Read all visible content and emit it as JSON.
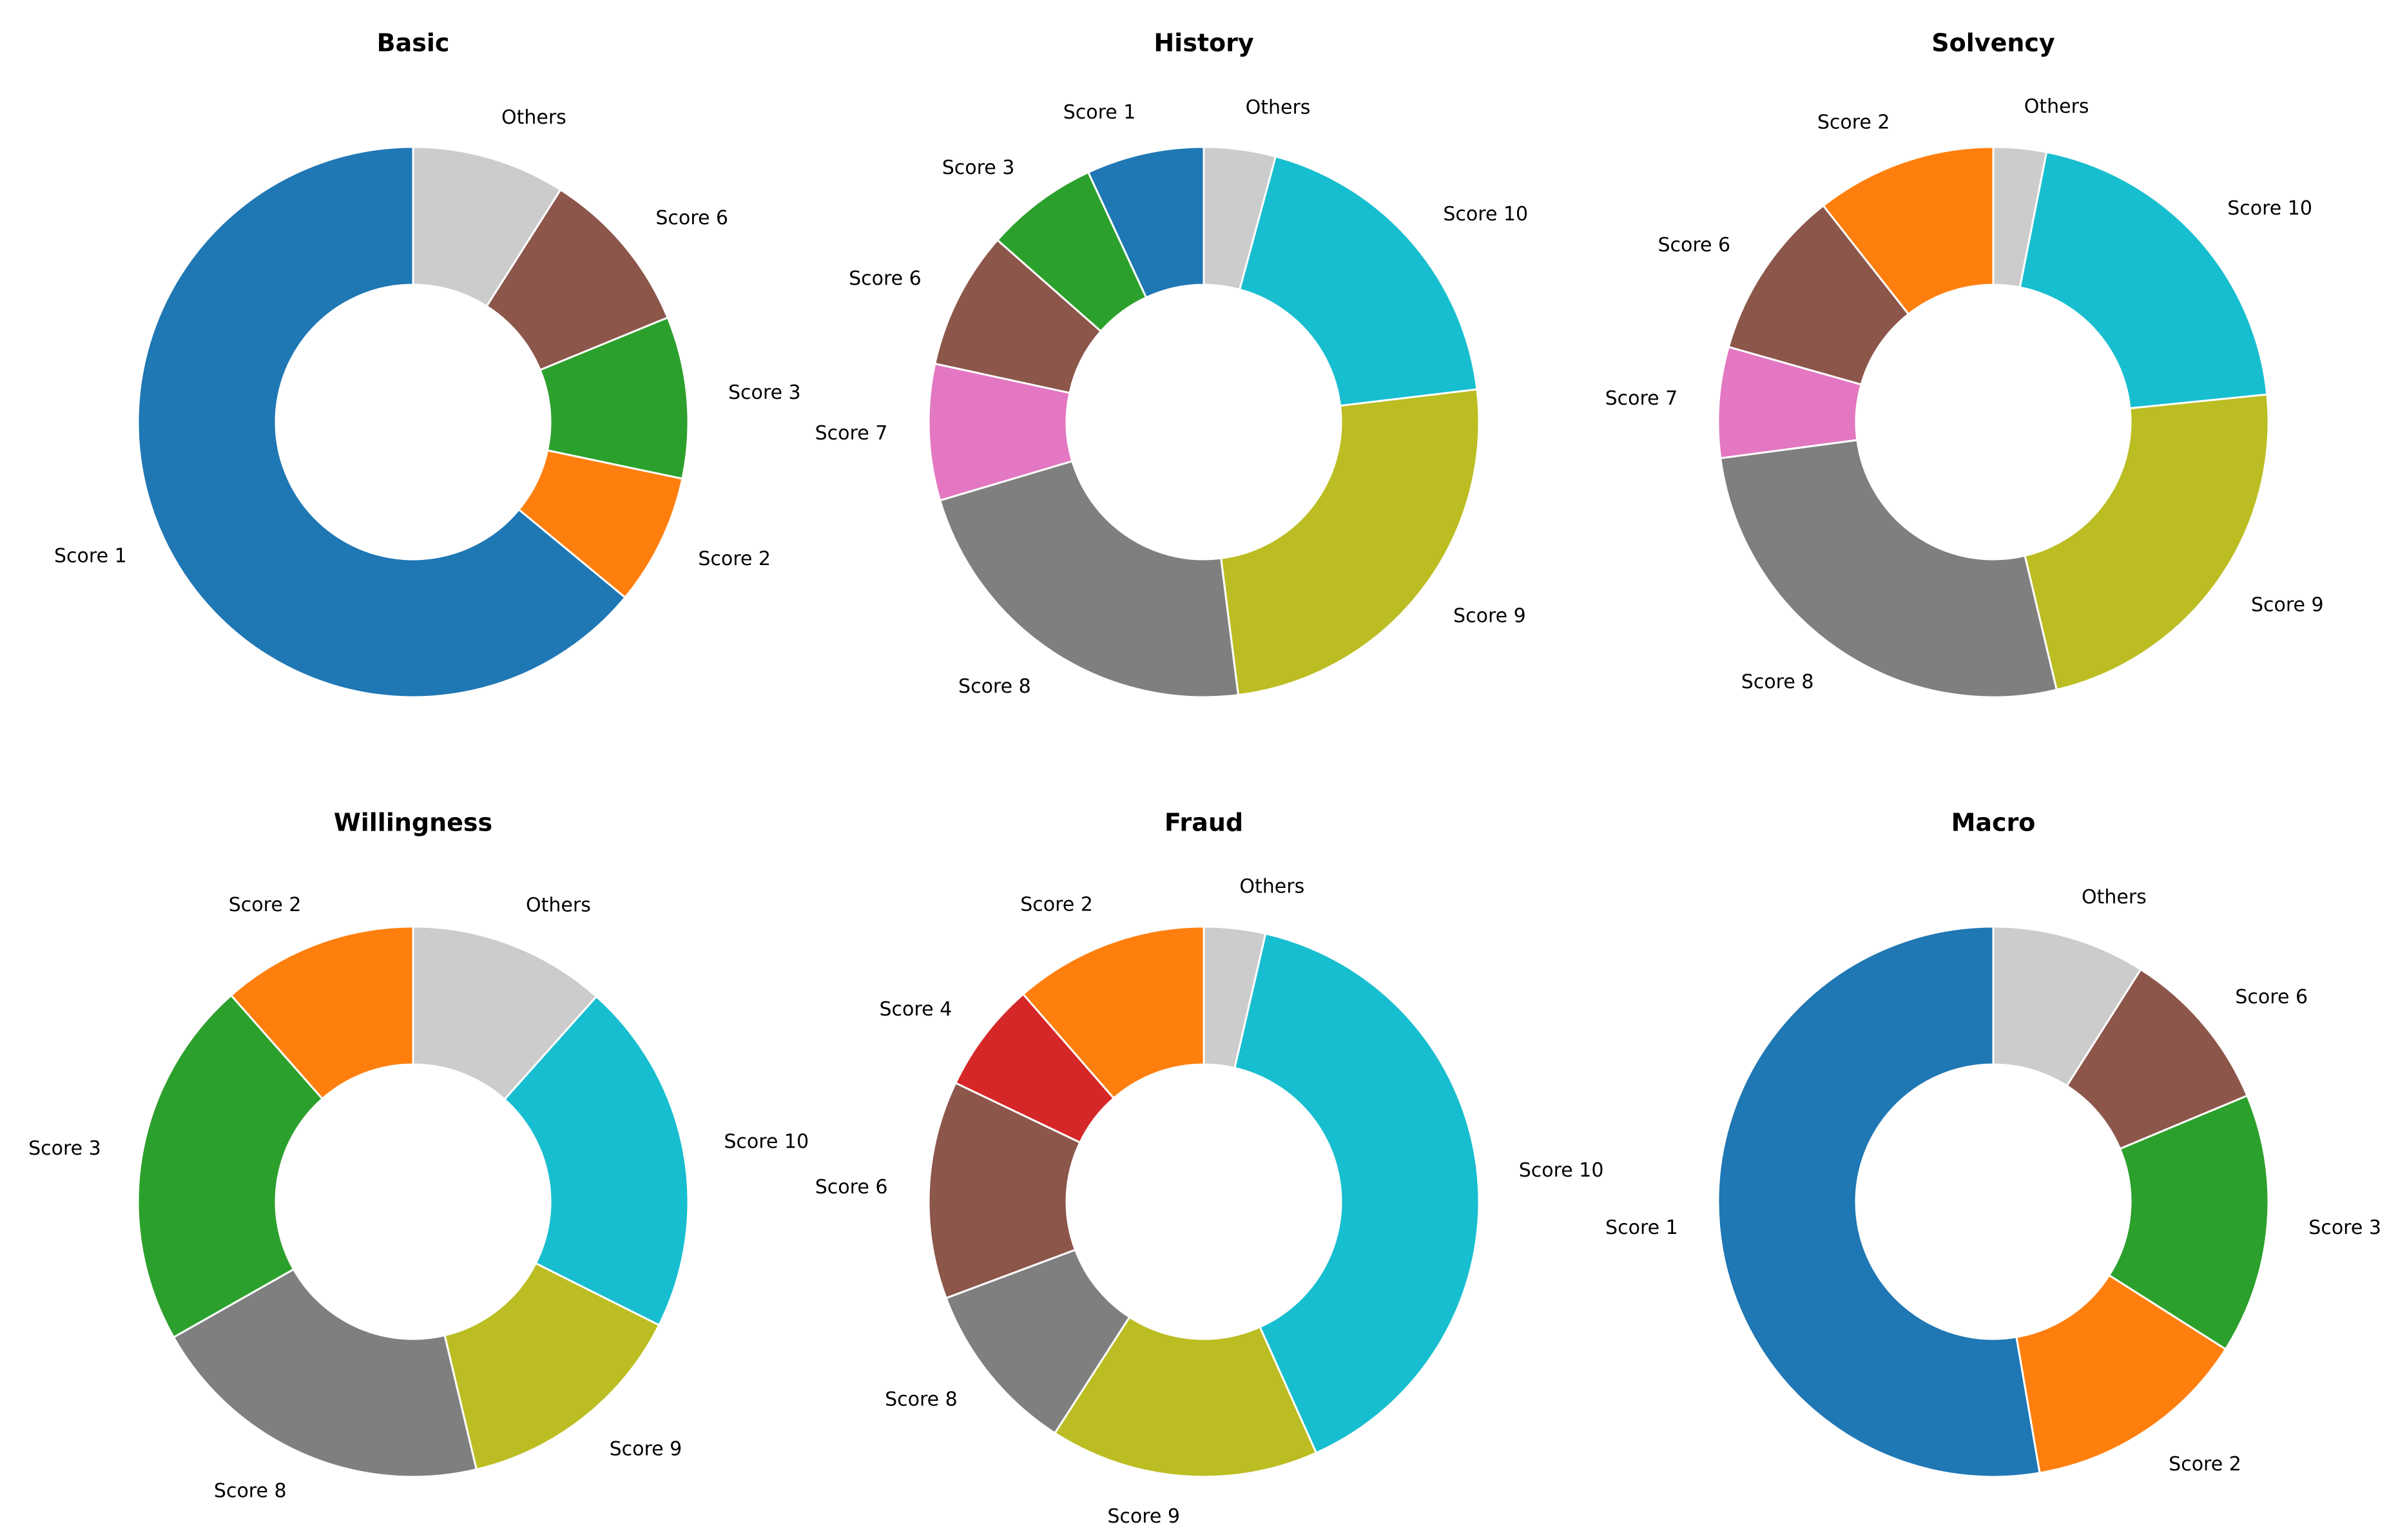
{
  "chart_data": [
    {
      "type": "donut",
      "title": "Basic",
      "categories": [
        "Score 1",
        "Score 2",
        "Score 3",
        "Score 6",
        "Others"
      ],
      "values": [
        64,
        7.7,
        9.5,
        9.8,
        9.0
      ],
      "colors": [
        "#1f77b4",
        "#ff7f0e",
        "#2ca02c",
        "#8c564b",
        "#cccccc"
      ]
    },
    {
      "type": "donut",
      "title": "History",
      "categories": [
        "Score 1",
        "Score 3",
        "Score 6",
        "Score 7",
        "Score 8",
        "Score 9",
        "Score 10",
        "Others"
      ],
      "values": [
        6.9,
        6.6,
        8.1,
        8.0,
        22.4,
        24.9,
        18.9,
        4.2
      ],
      "colors": [
        "#1f77b4",
        "#2ca02c",
        "#8c564b",
        "#e377c2",
        "#7f7f7f",
        "#bcbd22",
        "#17becf",
        "#cccccc"
      ]
    },
    {
      "type": "donut",
      "title": "Solvency",
      "categories": [
        "Score 2",
        "Score 6",
        "Score 7",
        "Score 8",
        "Score 9",
        "Score 10",
        "Others"
      ],
      "values": [
        10.6,
        10.0,
        6.5,
        26.6,
        22.9,
        20.3,
        3.1
      ],
      "colors": [
        "#ff7f0e",
        "#8c564b",
        "#e377c2",
        "#7f7f7f",
        "#bcbd22",
        "#17becf",
        "#cccccc"
      ]
    },
    {
      "type": "donut",
      "title": "Willingness",
      "categories": [
        "Score 2",
        "Score 3",
        "Score 8",
        "Score 9",
        "Score 10",
        "Others"
      ],
      "values": [
        11.5,
        21.7,
        20.5,
        13.9,
        20.8,
        11.6
      ],
      "colors": [
        "#ff7f0e",
        "#2ca02c",
        "#7f7f7f",
        "#bcbd22",
        "#17becf",
        "#cccccc"
      ]
    },
    {
      "type": "donut",
      "title": "Fraud",
      "categories": [
        "Score 2",
        "Score 4",
        "Score 6",
        "Score 8",
        "Score 9",
        "Score 10",
        "Others"
      ],
      "values": [
        11.4,
        6.5,
        12.8,
        10.2,
        15.8,
        39.7,
        3.6
      ],
      "colors": [
        "#ff7f0e",
        "#d62728",
        "#8c564b",
        "#7f7f7f",
        "#bcbd22",
        "#17becf",
        "#cccccc"
      ]
    },
    {
      "type": "donut",
      "title": "Macro",
      "categories": [
        "Score 1",
        "Score 2",
        "Score 3",
        "Score 6",
        "Others"
      ],
      "values": [
        52.7,
        13.3,
        15.3,
        9.7,
        9.0
      ],
      "colors": [
        "#1f77b4",
        "#ff7f0e",
        "#2ca02c",
        "#8c564b",
        "#cccccc"
      ]
    }
  ]
}
